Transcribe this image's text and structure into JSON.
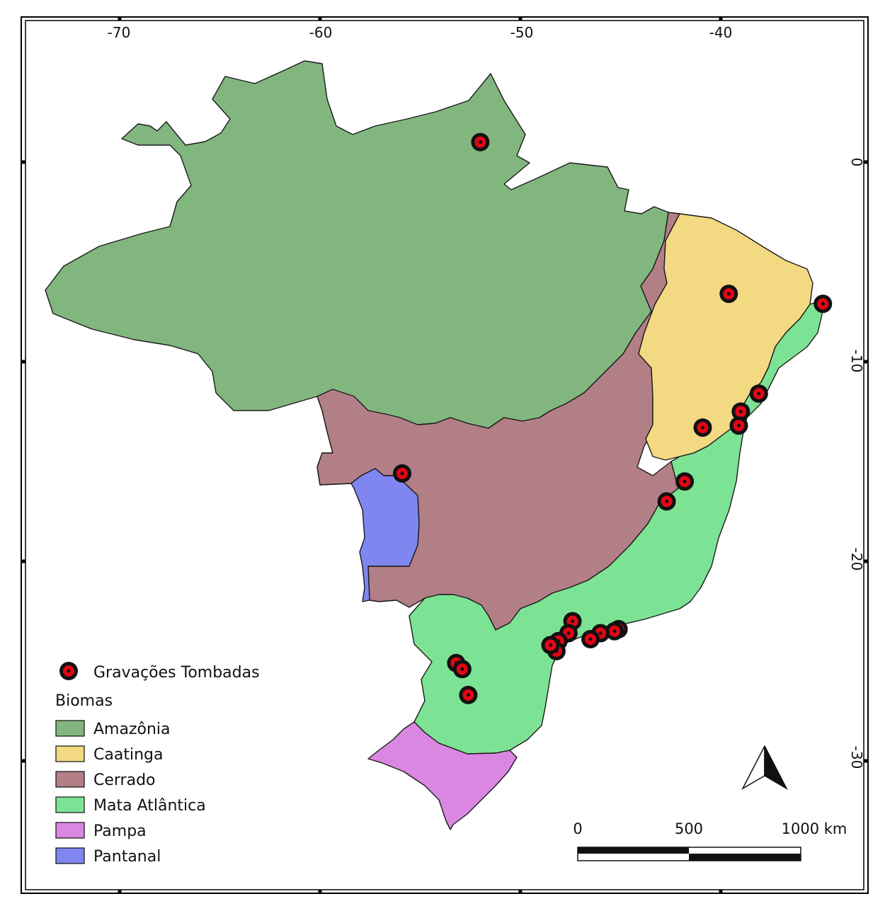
{
  "map": {
    "grid": {
      "longitude_labels": [
        "-70",
        "-60",
        "-50",
        "-40"
      ],
      "latitude_labels": [
        "0",
        "-10",
        "-20",
        "-30"
      ]
    },
    "points_legend_label": "Gravações Tombadas",
    "biomes_title": "Biomas",
    "biomes": [
      {
        "name": "Amazônia",
        "color": "#82b67f"
      },
      {
        "name": "Caatinga",
        "color": "#f4d983"
      },
      {
        "name": "Cerrado",
        "color": "#b37f86"
      },
      {
        "name": "Mata Atlântica",
        "color": "#7de394"
      },
      {
        "name": "Pampa",
        "color": "#da87e2"
      },
      {
        "name": "Pantanal",
        "color": "#7f86ef"
      }
    ],
    "marker_colors": {
      "outer": "#111111",
      "ring": "#e30613",
      "center": "#111111"
    },
    "scale_bar": {
      "labels": [
        "0",
        "500",
        "1000 km"
      ]
    },
    "north_arrow": "north-arrow-icon",
    "recording_points": [
      {
        "lon": -52.0,
        "lat": 1.0
      },
      {
        "lon": -55.9,
        "lat": -15.6
      },
      {
        "lon": -39.6,
        "lat": -6.6
      },
      {
        "lon": -34.9,
        "lat": -7.1
      },
      {
        "lon": -38.1,
        "lat": -11.6
      },
      {
        "lon": -39.0,
        "lat": -12.5
      },
      {
        "lon": -39.1,
        "lat": -13.2
      },
      {
        "lon": -40.9,
        "lat": -13.3
      },
      {
        "lon": -41.8,
        "lat": -16.0
      },
      {
        "lon": -42.7,
        "lat": -17.0
      },
      {
        "lon": -47.4,
        "lat": -23.0
      },
      {
        "lon": -47.6,
        "lat": -23.6
      },
      {
        "lon": -48.1,
        "lat": -24.0
      },
      {
        "lon": -48.2,
        "lat": -24.5
      },
      {
        "lon": -48.5,
        "lat": -24.2
      },
      {
        "lon": -45.1,
        "lat": -23.4
      },
      {
        "lon": -45.3,
        "lat": -23.5
      },
      {
        "lon": -46.0,
        "lat": -23.6
      },
      {
        "lon": -46.5,
        "lat": -23.9
      },
      {
        "lon": -53.2,
        "lat": -25.1
      },
      {
        "lon": -52.9,
        "lat": -25.4
      },
      {
        "lon": -52.6,
        "lat": -26.7
      }
    ]
  }
}
